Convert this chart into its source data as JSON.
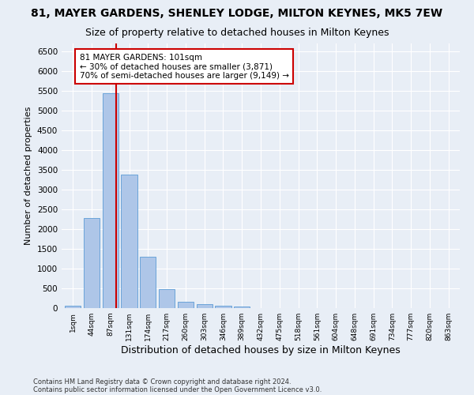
{
  "title1": "81, MAYER GARDENS, SHENLEY LODGE, MILTON KEYNES, MK5 7EW",
  "title2": "Size of property relative to detached houses in Milton Keynes",
  "xlabel": "Distribution of detached houses by size in Milton Keynes",
  "ylabel": "Number of detached properties",
  "bin_labels": [
    "1sqm",
    "44sqm",
    "87sqm",
    "131sqm",
    "174sqm",
    "217sqm",
    "260sqm",
    "303sqm",
    "346sqm",
    "389sqm",
    "432sqm",
    "475sqm",
    "518sqm",
    "561sqm",
    "604sqm",
    "648sqm",
    "691sqm",
    "734sqm",
    "777sqm",
    "820sqm",
    "863sqm"
  ],
  "bar_values": [
    70,
    2280,
    5440,
    3380,
    1310,
    480,
    165,
    100,
    60,
    40,
    10,
    5,
    3,
    2,
    1,
    1,
    1,
    1,
    1,
    1,
    0
  ],
  "bar_color": "#aec6e8",
  "bar_edgecolor": "#5b9bd5",
  "vline_x": 2.3,
  "vline_color": "#cc0000",
  "annotation_text": "81 MAYER GARDENS: 101sqm\n← 30% of detached houses are smaller (3,871)\n70% of semi-detached houses are larger (9,149) →",
  "annotation_box_color": "#ffffff",
  "annotation_box_edgecolor": "#cc0000",
  "ylim": [
    0,
    6700
  ],
  "yticks": [
    0,
    500,
    1000,
    1500,
    2000,
    2500,
    3000,
    3500,
    4000,
    4500,
    5000,
    5500,
    6000,
    6500
  ],
  "footer1": "Contains HM Land Registry data © Crown copyright and database right 2024.",
  "footer2": "Contains public sector information licensed under the Open Government Licence v3.0.",
  "bg_color": "#e8eef6",
  "plot_bg_color": "#e8eef6",
  "grid_color": "#ffffff",
  "title1_fontsize": 10,
  "title2_fontsize": 9,
  "xlabel_fontsize": 9,
  "ylabel_fontsize": 8,
  "annotation_fontsize": 7.5,
  "footer_fontsize": 6
}
